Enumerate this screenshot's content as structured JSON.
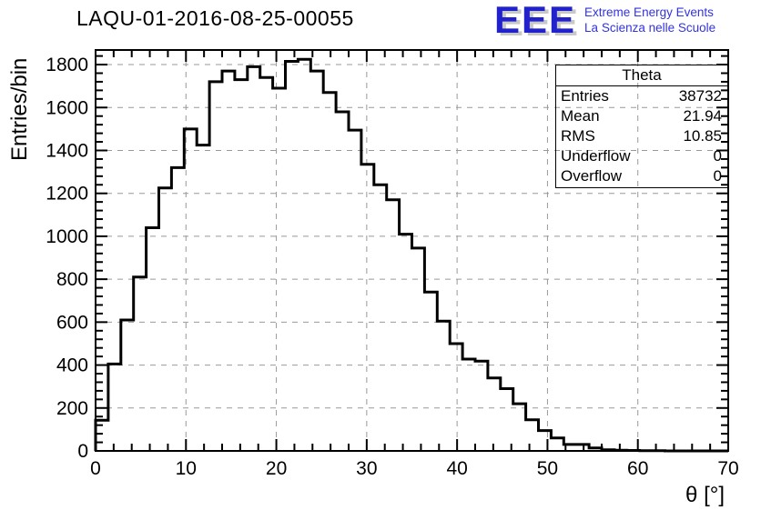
{
  "title": "LAQU-01-2016-08-25-00055",
  "logo": {
    "acronym": "EEE",
    "line1": "Extreme Energy Events",
    "line2": "La Scienza nelle Scuole",
    "color": "#2222cc",
    "text_color": "#3333dd",
    "shadow_color": "#c8c8c8"
  },
  "stats_box": {
    "title": "Theta",
    "rows": [
      {
        "label": "Entries",
        "value": "38732"
      },
      {
        "label": "Mean",
        "value": "21.94"
      },
      {
        "label": "RMS",
        "value": "10.85"
      },
      {
        "label": "Underflow",
        "value": "0"
      },
      {
        "label": "Overflow",
        "value": "0"
      }
    ]
  },
  "chart_data": {
    "type": "bar",
    "style": "step-histogram",
    "title": "LAQU-01-2016-08-25-00055",
    "xlabel": "θ [°]",
    "ylabel": "Entries/bin",
    "xlim": [
      0,
      70
    ],
    "ylim": [
      0,
      1868
    ],
    "bin_start": 0,
    "bin_width": 1.4,
    "bin_values": [
      143,
      405,
      610,
      810,
      1040,
      1225,
      1320,
      1500,
      1425,
      1720,
      1770,
      1730,
      1790,
      1740,
      1690,
      1815,
      1825,
      1770,
      1670,
      1580,
      1495,
      1335,
      1240,
      1170,
      1010,
      945,
      740,
      605,
      500,
      428,
      418,
      340,
      290,
      220,
      145,
      95,
      60,
      30,
      30,
      14,
      5,
      3,
      2,
      1,
      1,
      0,
      0,
      0,
      0,
      0
    ],
    "x_major_ticks": [
      0,
      10,
      20,
      30,
      40,
      50,
      60,
      70
    ],
    "y_major_ticks": [
      0,
      200,
      400,
      600,
      800,
      1000,
      1200,
      1400,
      1600,
      1800
    ],
    "x_minor_step": 2,
    "y_minor_step": 40,
    "grid": true,
    "grid_color": "#999999",
    "line_color": "#000000",
    "legend_position": "none"
  }
}
